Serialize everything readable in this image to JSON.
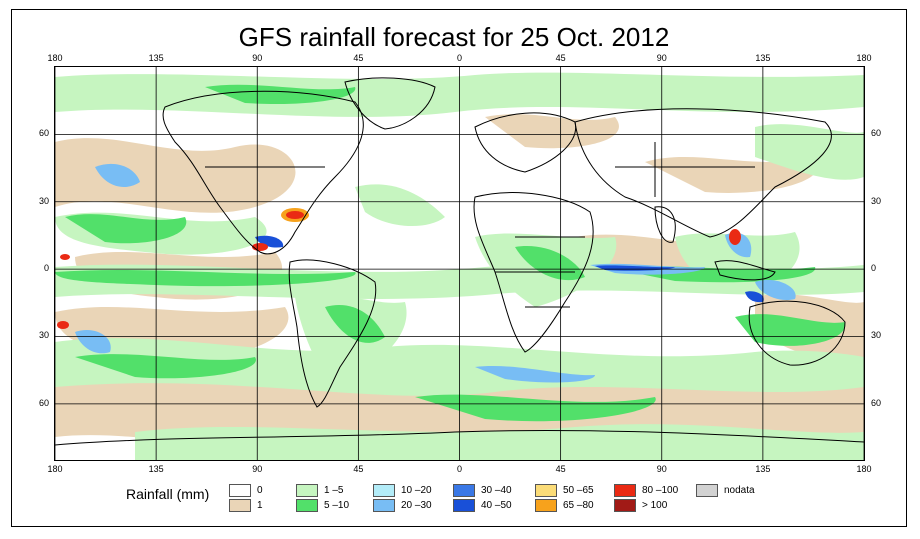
{
  "title": "GFS rainfall forecast for 25 Oct. 2012",
  "lon_ticks": [
    {
      "value": -180,
      "label": "180"
    },
    {
      "value": -135,
      "label": "135"
    },
    {
      "value": -90,
      "label": "90"
    },
    {
      "value": -45,
      "label": "45"
    },
    {
      "value": 0,
      "label": "0"
    },
    {
      "value": 45,
      "label": "45"
    },
    {
      "value": 90,
      "label": "90"
    },
    {
      "value": 135,
      "label": "135"
    },
    {
      "value": 180,
      "label": "180"
    }
  ],
  "lat_ticks": [
    {
      "value": 60,
      "label": "60"
    },
    {
      "value": 30,
      "label": "30"
    },
    {
      "value": 0,
      "label": "0"
    },
    {
      "value": -30,
      "label": "30"
    },
    {
      "value": -60,
      "label": "60"
    }
  ],
  "map_extent": {
    "lon": [
      -180,
      180
    ],
    "lat": [
      -85,
      90
    ]
  },
  "legend": {
    "title": "Rainfall (mm)",
    "items": [
      {
        "label": "0",
        "color": "#ffffff"
      },
      {
        "label": "1",
        "color": "#ead5b7"
      },
      {
        "label": "1 –5",
        "color": "#c6f5c0"
      },
      {
        "label": "5 –10",
        "color": "#52e06a"
      },
      {
        "label": "10 –20",
        "color": "#b3ecf8"
      },
      {
        "label": "20 –30",
        "color": "#78bdf4"
      },
      {
        "label": "30 –40",
        "color": "#3a78e6"
      },
      {
        "label": "40 –50",
        "color": "#1950d8"
      },
      {
        "label": "50 –65",
        "color": "#fbdc78"
      },
      {
        "label": "65 –80",
        "color": "#f7a21c"
      },
      {
        "label": "80 –100",
        "color": "#ea2a14"
      },
      {
        "label": "> 100",
        "color": "#a11a16"
      },
      {
        "label": "nodata",
        "color": "#d2d2d2"
      }
    ]
  }
}
